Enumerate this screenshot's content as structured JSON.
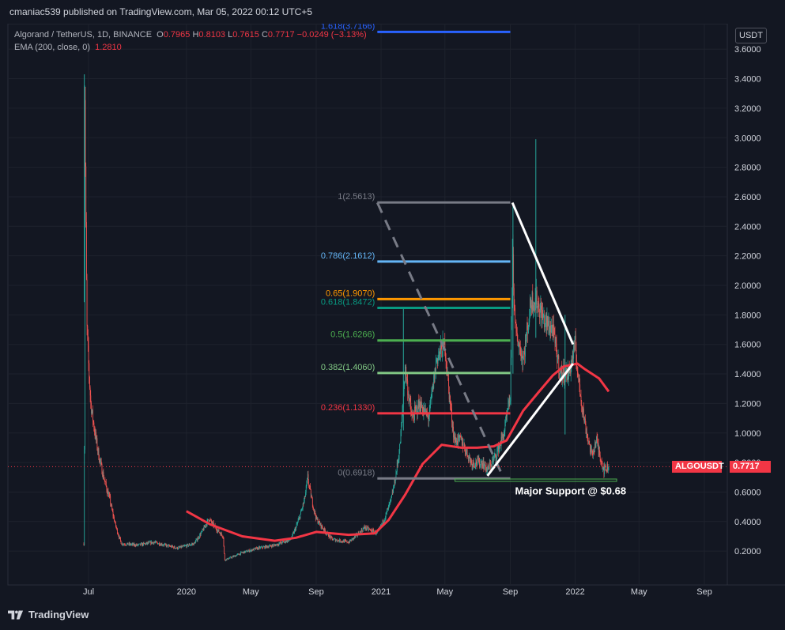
{
  "header": {
    "published": "cmaniac539 published on TradingView.com, Mar 05, 2022 00:12 UTC+5"
  },
  "legend": {
    "symbol": "Algorand / TetherUS, 1D, BINANCE",
    "o_label": "O",
    "o_value": "0.7965",
    "h_label": "H",
    "h_value": "0.8103",
    "l_label": "L",
    "l_value": "0.7615",
    "c_label": "C",
    "c_value": "0.7717",
    "change": "−0.0249 (−3.13%)",
    "ema_label": "EMA (200, close, 0)",
    "ema_value": "1.2810"
  },
  "currency": "USDT",
  "symbol_tag": "ALGOUSDT",
  "last_price_tag": "0.7717",
  "footer": {
    "brand": "TradingView"
  },
  "colors": {
    "background": "#131722",
    "up": "#26a69a",
    "down": "#ef5350",
    "ema": "#f23645",
    "fib_1618": "#2962ff",
    "fib_1": "#787b86",
    "fib_0786": "#64b5f6",
    "fib_065": "#ff9800",
    "fib_0618": "#089981",
    "fib_05": "#4caf50",
    "fib_0382": "#81c784",
    "fib_0236": "#f23645",
    "fib_0": "#787b86",
    "support": "#4caf50",
    "wedge": "#ffffff"
  },
  "chart_data": {
    "type": "candlestick",
    "pair": "ALGOUSDT",
    "timeframe": "1D",
    "exchange": "BINANCE",
    "ylim": [
      0.1,
      3.8
    ],
    "y_ticks": [
      "3.6000",
      "3.4000",
      "3.2000",
      "3.0000",
      "2.8000",
      "2.6000",
      "2.4000",
      "2.2000",
      "2.0000",
      "1.8000",
      "1.6000",
      "1.4000",
      "1.2000",
      "1.0000",
      "0.8000",
      "0.6000",
      "0.4000",
      "0.2000"
    ],
    "x_ticks": [
      "Jul",
      "2020",
      "May",
      "Sep",
      "2021",
      "May",
      "Sep",
      "2022",
      "May",
      "Sep"
    ],
    "price_path": [
      [
        "2019-06-22",
        0.25
      ],
      [
        "2019-06-24",
        3.3
      ],
      [
        "2019-06-28",
        1.7
      ],
      [
        "2019-07-05",
        1.2
      ],
      [
        "2019-07-20",
        0.85
      ],
      [
        "2019-08-10",
        0.55
      ],
      [
        "2019-09-01",
        0.25
      ],
      [
        "2019-10-01",
        0.24
      ],
      [
        "2019-11-01",
        0.26
      ],
      [
        "2019-12-15",
        0.22
      ],
      [
        "2020-01-15",
        0.25
      ],
      [
        "2020-02-12",
        0.42
      ],
      [
        "2020-03-10",
        0.3
      ],
      [
        "2020-03-13",
        0.14
      ],
      [
        "2020-04-15",
        0.19
      ],
      [
        "2020-05-15",
        0.22
      ],
      [
        "2020-06-15",
        0.24
      ],
      [
        "2020-07-15",
        0.28
      ],
      [
        "2020-08-10",
        0.55
      ],
      [
        "2020-08-16",
        0.7
      ],
      [
        "2020-09-01",
        0.42
      ],
      [
        "2020-10-01",
        0.28
      ],
      [
        "2020-11-01",
        0.26
      ],
      [
        "2020-12-01",
        0.36
      ],
      [
        "2020-12-25",
        0.32
      ],
      [
        "2021-01-20",
        0.55
      ],
      [
        "2021-02-05",
        0.9
      ],
      [
        "2021-02-15",
        1.45
      ],
      [
        "2021-02-28",
        1.1
      ],
      [
        "2021-03-15",
        1.2
      ],
      [
        "2021-03-31",
        1.1
      ],
      [
        "2021-04-15",
        1.5
      ],
      [
        "2021-05-01",
        1.6
      ],
      [
        "2021-05-19",
        0.95
      ],
      [
        "2021-06-01",
        0.95
      ],
      [
        "2021-06-20",
        0.8
      ],
      [
        "2021-07-10",
        0.8
      ],
      [
        "2021-07-20",
        0.75
      ],
      [
        "2021-08-05",
        0.85
      ],
      [
        "2021-08-20",
        1.0
      ],
      [
        "2021-09-01",
        1.25
      ],
      [
        "2021-09-05",
        2.3
      ],
      [
        "2021-09-10",
        1.7
      ],
      [
        "2021-09-25",
        1.5
      ],
      [
        "2021-10-10",
        1.9
      ],
      [
        "2021-10-20",
        1.9
      ],
      [
        "2021-11-05",
        1.75
      ],
      [
        "2021-11-20",
        1.7
      ],
      [
        "2021-12-04",
        1.4
      ],
      [
        "2021-12-20",
        1.4
      ],
      [
        "2022-01-01",
        1.6
      ],
      [
        "2022-01-06",
        1.4
      ],
      [
        "2022-01-20",
        1.05
      ],
      [
        "2022-02-01",
        0.85
      ],
      [
        "2022-02-10",
        0.95
      ],
      [
        "2022-02-24",
        0.75
      ],
      [
        "2022-03-05",
        0.7717
      ]
    ],
    "wicks": [
      {
        "date": "2019-06-23",
        "high": 3.43
      },
      {
        "date": "2021-02-12",
        "high": 1.85
      },
      {
        "date": "2021-09-06",
        "high": 2.55
      },
      {
        "date": "2021-10-19",
        "high": 2.99
      },
      {
        "date": "2021-12-13",
        "high": 1.8
      }
    ],
    "ema200": [
      [
        "2020-01-01",
        0.47
      ],
      [
        "2020-02-15",
        0.38
      ],
      [
        "2020-04-15",
        0.3
      ],
      [
        "2020-06-15",
        0.27
      ],
      [
        "2020-07-25",
        0.29
      ],
      [
        "2020-09-01",
        0.33
      ],
      [
        "2020-10-01",
        0.32
      ],
      [
        "2020-11-01",
        0.31
      ],
      [
        "2020-12-20",
        0.32
      ],
      [
        "2021-01-15",
        0.41
      ],
      [
        "2021-02-15",
        0.58
      ],
      [
        "2021-03-20",
        0.79
      ],
      [
        "2021-04-25",
        0.92
      ],
      [
        "2021-06-01",
        0.9
      ],
      [
        "2021-07-01",
        0.9
      ],
      [
        "2021-08-01",
        0.91
      ],
      [
        "2021-08-25",
        0.95
      ],
      [
        "2021-09-25",
        1.15
      ],
      [
        "2021-10-25",
        1.28
      ],
      [
        "2021-11-20",
        1.39
      ],
      [
        "2021-12-10",
        1.45
      ],
      [
        "2022-01-05",
        1.47
      ],
      [
        "2022-01-20",
        1.43
      ],
      [
        "2022-02-15",
        1.37
      ],
      [
        "2022-03-05",
        1.281
      ]
    ],
    "fib_levels": [
      {
        "label": "1.618(3.7166)",
        "price": 3.7166,
        "color": "#2962ff"
      },
      {
        "label": "1(2.5613)",
        "price": 2.5613,
        "color": "#787b86"
      },
      {
        "label": "0.786(2.1612)",
        "price": 2.1612,
        "color": "#64b5f6"
      },
      {
        "label": "0.65(1.9070)",
        "price": 1.907,
        "color": "#ff9800"
      },
      {
        "label": "0.618(1.8472)",
        "price": 1.8472,
        "color": "#089981"
      },
      {
        "label": "0.5(1.6266)",
        "price": 1.6266,
        "color": "#4caf50"
      },
      {
        "label": "0.382(1.4060)",
        "price": 1.406,
        "color": "#81c784"
      },
      {
        "label": "0.236(1.1330)",
        "price": 1.133,
        "color": "#f23645"
      },
      {
        "label": "0(0.6918)",
        "price": 0.6918,
        "color": "#787b86"
      }
    ],
    "fib_start": "2020-12-25",
    "fib_end": "2021-09-01",
    "fib_trend": [
      [
        "2020-12-25",
        2.56
      ],
      [
        "2021-08-20",
        0.69
      ]
    ],
    "wedge": {
      "upper": [
        [
          "2021-09-05",
          2.56
        ],
        [
          "2021-12-28",
          1.6
        ]
      ],
      "lower": [
        [
          "2021-07-20",
          0.71
        ],
        [
          "2021-12-28",
          1.47
        ]
      ]
    },
    "support": {
      "price": 0.68,
      "from": "2021-05-20",
      "to": "2022-03-20",
      "label": "Major Support @ $0.68"
    },
    "last_price": 0.7717
  }
}
